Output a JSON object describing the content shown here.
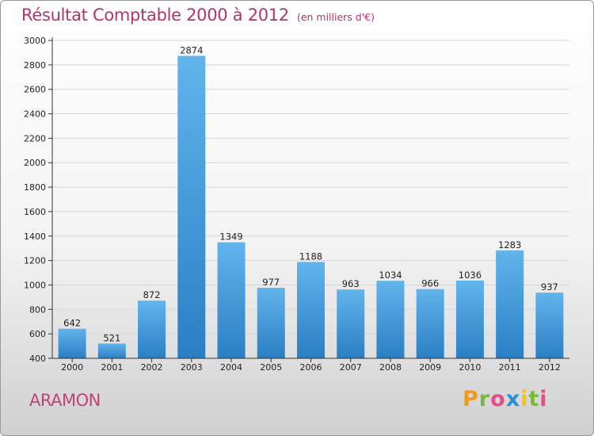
{
  "header": {
    "title": "Résultat Comptable 2000 à 2012",
    "subtitle": "(en milliers d'€)"
  },
  "footer": {
    "commune": "ARAMON",
    "logo_letters": [
      "P",
      "r",
      "o",
      "x",
      "i",
      "t",
      "i"
    ],
    "logo_colors": [
      "#f29a1b",
      "#7ab83a",
      "#e84a8c",
      "#2a8fd6",
      "#f2c21b",
      "#7ab83a",
      "#e84a8c"
    ]
  },
  "colors": {
    "bar_top": "#62b4ec",
    "bar_bottom": "#2a7fc4",
    "grid": "#d6d6d6",
    "axis": "#333333"
  },
  "chart_data": {
    "type": "bar",
    "title": "Résultat Comptable 2000 à 2012",
    "subtitle": "(en milliers d'€)",
    "categories": [
      "2000",
      "2001",
      "2002",
      "2003",
      "2004",
      "2005",
      "2006",
      "2007",
      "2008",
      "2009",
      "2010",
      "2011",
      "2012"
    ],
    "values": [
      642,
      521,
      872,
      2874,
      1349,
      977,
      1188,
      963,
      1034,
      966,
      1036,
      1283,
      937
    ],
    "ylim": [
      400,
      3000
    ],
    "yticks": [
      400,
      600,
      800,
      1000,
      1200,
      1400,
      1600,
      1800,
      2000,
      2200,
      2400,
      2600,
      2800,
      3000
    ],
    "grid": true,
    "data_labels": true
  }
}
